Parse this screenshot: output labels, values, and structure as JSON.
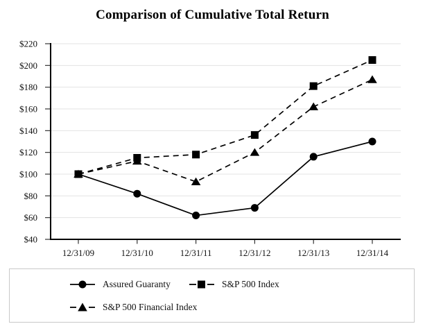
{
  "chart_data": {
    "type": "line",
    "title": "Comparison of Cumulative Total Return",
    "categories": [
      "12/31/09",
      "12/31/10",
      "12/31/11",
      "12/31/12",
      "12/31/13",
      "12/31/14"
    ],
    "y_ticks": [
      220,
      200,
      180,
      160,
      140,
      120,
      100,
      80,
      60,
      40
    ],
    "y_tick_labels": [
      "$220",
      "$200",
      "$180",
      "$160",
      "$140",
      "$120",
      "$100",
      "$80",
      "$60",
      "$40"
    ],
    "ylim": [
      40,
      220
    ],
    "xlabel": "",
    "ylabel": "",
    "grid": "horizontal",
    "legend_position": "bottom-box",
    "series": [
      {
        "name": "Assured Guaranty",
        "marker": "circle",
        "line_style": "solid",
        "values": [
          100,
          82,
          62,
          69,
          116,
          130
        ]
      },
      {
        "name": "S&P 500 Index",
        "marker": "square",
        "line_style": "dashed",
        "values": [
          100,
          115,
          118,
          136,
          181,
          205
        ]
      },
      {
        "name": "S&P 500 Financial Index",
        "marker": "triangle",
        "line_style": "dashed",
        "values": [
          100,
          112,
          93,
          120,
          162,
          187
        ]
      }
    ],
    "colors": {
      "series": "#000000",
      "grid": "#e3e3e3",
      "axis": "#000000",
      "tick": "#333333",
      "text": "#111111",
      "legend_border": "#c9c9c9",
      "background": "#ffffff"
    }
  }
}
